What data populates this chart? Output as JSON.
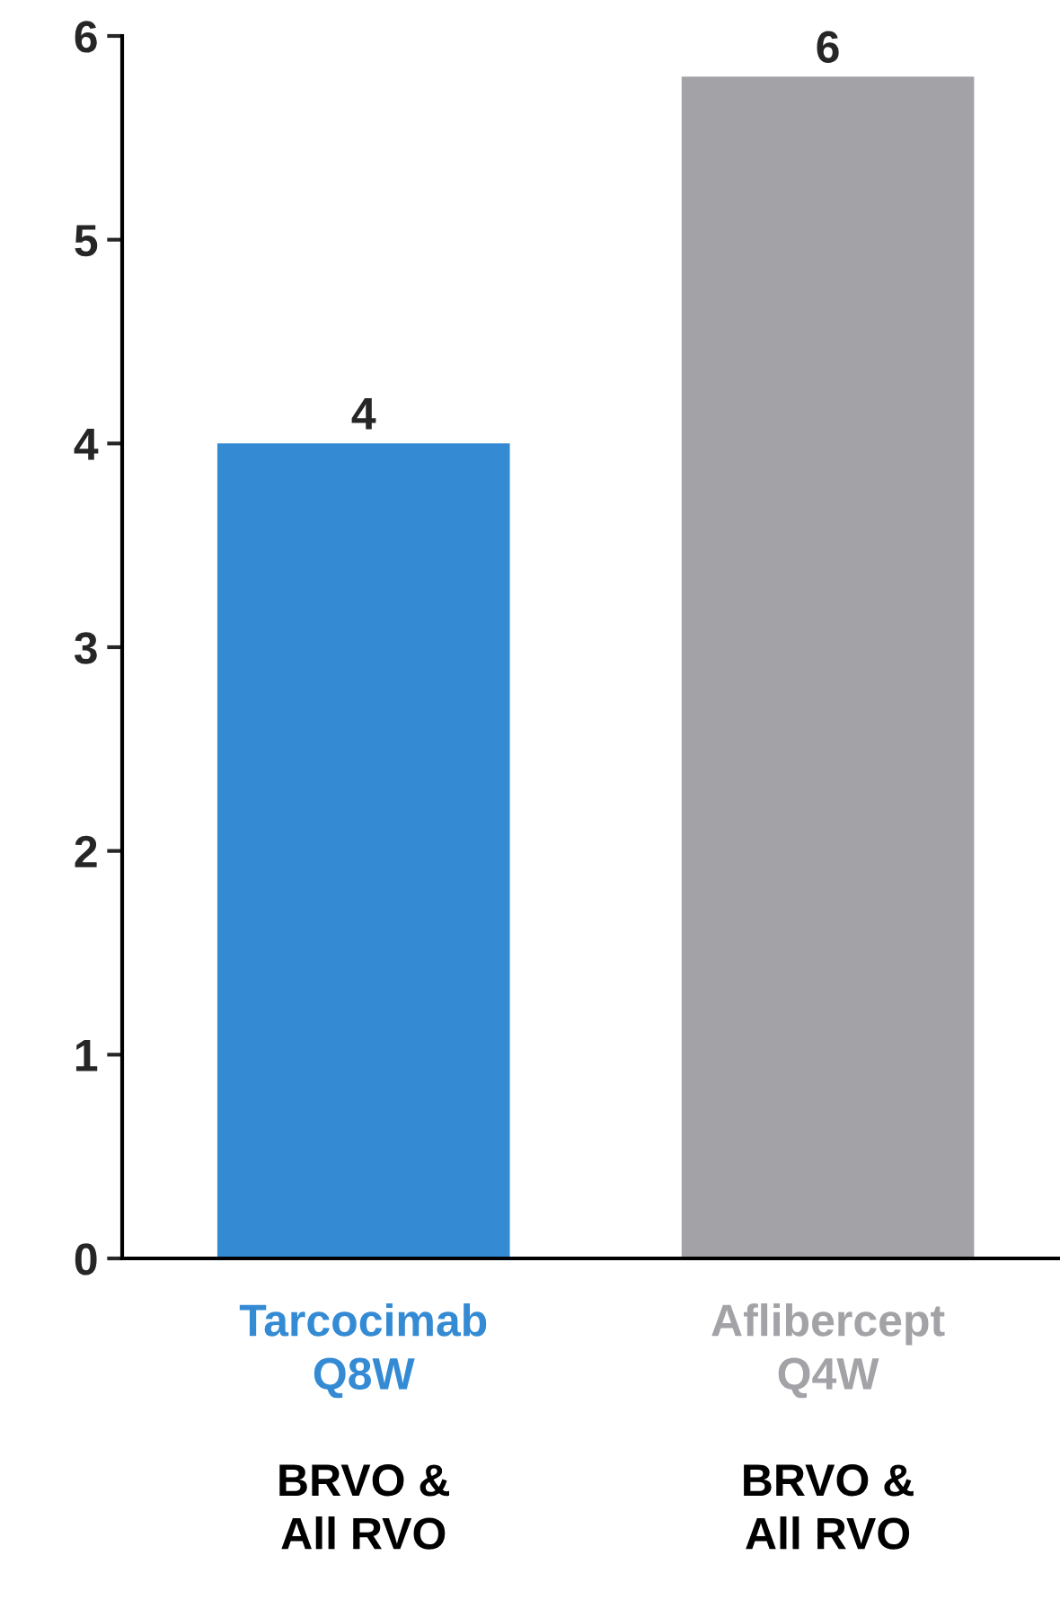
{
  "chart_data": {
    "type": "bar",
    "categories": [
      "Tarcocimab\nQ8W",
      "Aflibercept\nQ4W"
    ],
    "values": [
      4,
      5.8
    ],
    "colors": [
      "#348bd4",
      "#a3a2a7"
    ],
    "value_labels": [
      "4",
      "6"
    ],
    "ylim": [
      0,
      6
    ],
    "yticks": [
      0,
      1,
      2,
      3,
      4,
      5,
      6
    ],
    "annotations": [
      "BRVO &\nAll RVO",
      "BRVO &\nAll RVO"
    ],
    "grid": false,
    "legend": false
  }
}
